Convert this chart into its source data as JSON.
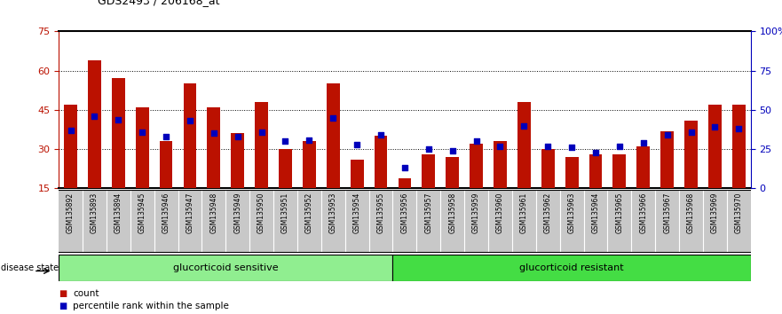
{
  "title": "GDS2493 / 206168_at",
  "samples": [
    "GSM135892",
    "GSM135893",
    "GSM135894",
    "GSM135945",
    "GSM135946",
    "GSM135947",
    "GSM135948",
    "GSM135949",
    "GSM135950",
    "GSM135951",
    "GSM135952",
    "GSM135953",
    "GSM135954",
    "GSM135955",
    "GSM135956",
    "GSM135957",
    "GSM135958",
    "GSM135959",
    "GSM135960",
    "GSM135961",
    "GSM135962",
    "GSM135963",
    "GSM135964",
    "GSM135965",
    "GSM135966",
    "GSM135967",
    "GSM135968",
    "GSM135969",
    "GSM135970"
  ],
  "counts": [
    47,
    64,
    57,
    46,
    33,
    55,
    46,
    36,
    48,
    30,
    33,
    55,
    26,
    35,
    19,
    28,
    27,
    32,
    33,
    48,
    30,
    27,
    28,
    28,
    31,
    37,
    41,
    47,
    47
  ],
  "percentile_ranks": [
    37,
    46,
    44,
    36,
    33,
    43,
    35,
    33,
    36,
    30,
    31,
    45,
    28,
    34,
    13,
    25,
    24,
    30,
    27,
    40,
    27,
    26,
    23,
    27,
    29,
    34,
    36,
    39,
    38
  ],
  "n_sensitive": 14,
  "group_sensitive": "glucorticoid sensitive",
  "group_resistant": "glucorticoid resistant",
  "disease_state_label": "disease state",
  "ylim_left": [
    15,
    75
  ],
  "ylim_right": [
    0,
    100
  ],
  "yticks_left": [
    15,
    30,
    45,
    60,
    75
  ],
  "yticks_right": [
    0,
    25,
    50,
    75,
    100
  ],
  "ytick_labels_right": [
    "0",
    "25",
    "50",
    "75",
    "100%"
  ],
  "bar_color": "#BB1100",
  "dot_color": "#0000BB",
  "grid_color": "#000000",
  "bg_color": "#FFFFFF",
  "sensitive_bg": "#90EE90",
  "resistant_bg": "#44DD44",
  "xticklabel_bg": "#C8C8C8",
  "legend_count": "count",
  "legend_percentile": "percentile rank within the sample",
  "bar_width": 0.55
}
